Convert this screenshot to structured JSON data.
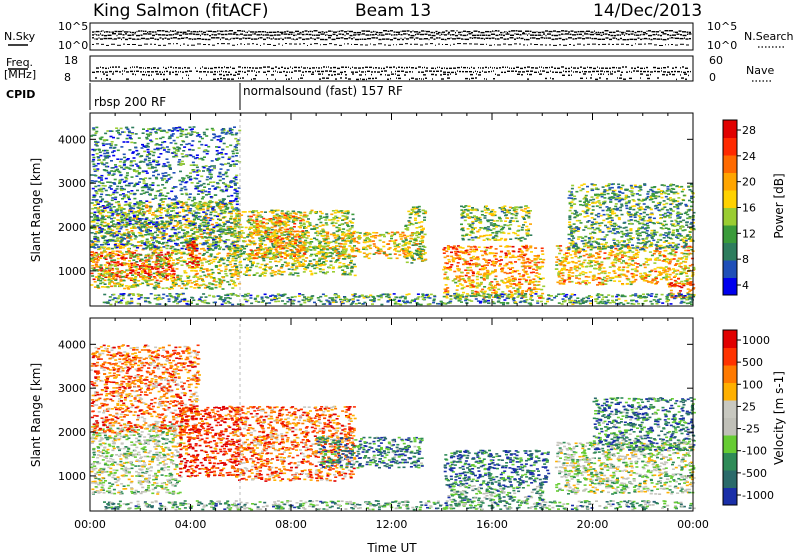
{
  "header": {
    "station": "King Salmon (fitACF)",
    "beam": "Beam 13",
    "date": "14/Dec/2013"
  },
  "strip_labels": {
    "nsky": "N.Sky",
    "nsearch": "N.Search",
    "freq_line1": "Freq.",
    "freq_line2": "[MHz]",
    "nave": "Nave",
    "cpid": "CPID",
    "nsky_ticks": [
      "10^5",
      "10^0"
    ],
    "nsearch_ticks": [
      "10^5",
      "10^0"
    ],
    "freq_ticks": [
      "18",
      "8"
    ],
    "nave_ticks": [
      "60",
      "0"
    ]
  },
  "cpid_modes": [
    {
      "label": "rbsp 200 RF",
      "start": "00:00",
      "end": "06:00"
    },
    {
      "label": "normalsound (fast) 157 RF",
      "start": "06:00",
      "end": "24:00"
    }
  ],
  "chart_data": [
    {
      "type": "heatmap",
      "name": "power-panel",
      "xlabel": "",
      "ylabel": "Slant Range [km]",
      "xlim": [
        0,
        24
      ],
      "ylim": [
        200,
        4600
      ],
      "y_ticks": [
        1000,
        2000,
        3000,
        4000
      ],
      "colorbar": {
        "label": "Power [dB]",
        "ticks": [
          "28",
          "24",
          "20",
          "16",
          "12",
          "8",
          "4"
        ],
        "colors": [
          "#0000ee",
          "#1f4fb8",
          "#2e7d5e",
          "#3a9b3a",
          "#9acd32",
          "#ffd200",
          "#ffa500",
          "#ff6a00",
          "#ff2a00",
          "#e00000"
        ]
      },
      "regions": [
        {
          "t0": 0.0,
          "t1": 3.3,
          "r0": 800,
          "r1": 1450,
          "level": 0.9
        },
        {
          "t0": 0.0,
          "t1": 5.9,
          "r0": 600,
          "r1": 2600,
          "level": 0.5
        },
        {
          "t0": 0.0,
          "t1": 5.9,
          "r0": 1500,
          "r1": 4300,
          "level": 0.25
        },
        {
          "t0": 3.8,
          "t1": 4.3,
          "r0": 1100,
          "r1": 1700,
          "level": 0.9
        },
        {
          "t0": 5.7,
          "t1": 10.5,
          "r0": 900,
          "r1": 2400,
          "level": 0.45
        },
        {
          "t0": 6.3,
          "t1": 8.5,
          "r0": 1300,
          "r1": 2300,
          "level": 0.65
        },
        {
          "t0": 9.0,
          "t1": 13.2,
          "r0": 1300,
          "r1": 1900,
          "level": 0.55
        },
        {
          "t0": 12.5,
          "t1": 13.3,
          "r0": 1200,
          "r1": 2500,
          "level": 0.45
        },
        {
          "t0": 14.0,
          "t1": 18.0,
          "r0": 900,
          "r1": 1600,
          "level": 0.7
        },
        {
          "t0": 14.0,
          "t1": 18.0,
          "r0": 400,
          "r1": 900,
          "level": 0.6
        },
        {
          "t0": 14.7,
          "t1": 17.5,
          "r0": 1700,
          "r1": 2500,
          "level": 0.4
        },
        {
          "t0": 18.5,
          "t1": 24.0,
          "r0": 700,
          "r1": 1600,
          "level": 0.6
        },
        {
          "t0": 19.0,
          "t1": 24.0,
          "r0": 1500,
          "r1": 3000,
          "level": 0.35
        },
        {
          "t0": 23.0,
          "t1": 24.0,
          "r0": 400,
          "r1": 800,
          "level": 0.8
        },
        {
          "t0": 0.5,
          "t1": 24.0,
          "r0": 250,
          "r1": 500,
          "level": 0.3
        }
      ]
    },
    {
      "type": "heatmap",
      "name": "velocity-panel",
      "xlabel": "Time UT",
      "ylabel": "Slant Range [km]",
      "xlim": [
        0,
        24
      ],
      "ylim": [
        200,
        4600
      ],
      "x_ticks": [
        "00:00",
        "04:00",
        "08:00",
        "12:00",
        "16:00",
        "20:00",
        "00:00"
      ],
      "y_ticks": [
        1000,
        2000,
        3000,
        4000
      ],
      "colorbar": {
        "label": "Velocity [m s-1]",
        "ticks": [
          "1000",
          "500",
          "100",
          "25",
          "-25",
          "-100",
          "-500",
          "-1000"
        ],
        "colors": [
          "#1a2fa8",
          "#2a6a6a",
          "#2e8b57",
          "#66cc33",
          "#c0c0b8",
          "#c8c8c0",
          "#ffb000",
          "#ff7a00",
          "#ff3300",
          "#e00000"
        ]
      },
      "regions": [
        {
          "t0": 0.0,
          "t1": 3.6,
          "r0": 600,
          "r1": 2200,
          "level": 0.45
        },
        {
          "t0": 0.0,
          "t1": 4.3,
          "r0": 2000,
          "r1": 4000,
          "level": 0.75
        },
        {
          "t0": 3.5,
          "t1": 5.9,
          "r0": 1000,
          "r1": 2600,
          "level": 0.9
        },
        {
          "t0": 5.7,
          "t1": 10.5,
          "r0": 900,
          "r1": 2600,
          "level": 0.75
        },
        {
          "t0": 9.0,
          "t1": 13.2,
          "r0": 1200,
          "r1": 1900,
          "level": 0.2
        },
        {
          "t0": 14.0,
          "t1": 18.2,
          "r0": 800,
          "r1": 1600,
          "level": 0.15
        },
        {
          "t0": 14.2,
          "t1": 18.0,
          "r0": 400,
          "r1": 800,
          "level": 0.3
        },
        {
          "t0": 18.5,
          "t1": 24.0,
          "r0": 600,
          "r1": 1800,
          "level": 0.45
        },
        {
          "t0": 20.0,
          "t1": 24.0,
          "r0": 1600,
          "r1": 2800,
          "level": 0.2
        },
        {
          "t0": 0.5,
          "t1": 24.0,
          "r0": 250,
          "r1": 450,
          "level": 0.3
        }
      ]
    }
  ]
}
